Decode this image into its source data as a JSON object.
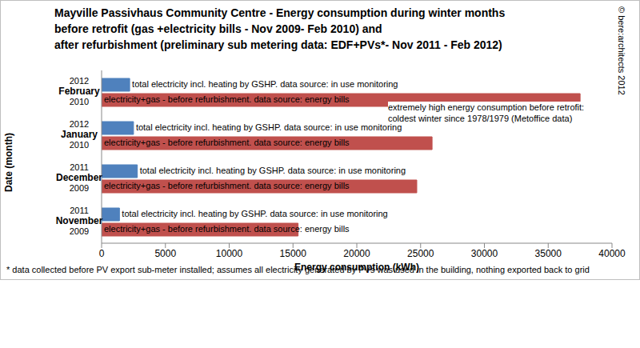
{
  "chart_data": {
    "type": "bar",
    "orientation": "horizontal",
    "title": "Mayville Passivhaus Community Centre - Energy consumption during winter months\nbefore retrofit (gas +electricity bills - Nov 2009- Feb 2010) and\nafter refurbishment (preliminary sub metering data: EDF+PVs*- Nov 2011 - Feb 2012)",
    "x_label": "Energy consumption (kWh)",
    "y_label": "Date (month)",
    "categories": [
      "2012\nFebruary\n2010",
      "2012\nJanuary\n2010",
      "2011\nDecember\n2009",
      "2011\nNovember\n2009"
    ],
    "series": [
      {
        "name": "total electricity incl. heating by GSHP.  data source: in use monitoring",
        "color": "#4f81bd",
        "values": [
          2200,
          2500,
          2800,
          1400
        ]
      },
      {
        "name": "electricity+gas - before refurbishment. data source: energy bills",
        "color": "#c0504d",
        "values": [
          37500,
          25900,
          24700,
          15400
        ]
      }
    ],
    "xlim": [
      0,
      40000
    ],
    "xticks": [
      0,
      5000,
      10000,
      15000,
      20000,
      25000,
      30000,
      35000,
      40000
    ],
    "grid": false,
    "annotation": "extremely high energy consumption before retrofit:\ncoldest winter since 1978/1979 (Metoffice data)",
    "footnote": "* data collected before PV export sub-meter installed; assumes all electricity generated by PVs was used in the building, nothing exported back to grid",
    "copyright": "© bere:architects 2012"
  }
}
